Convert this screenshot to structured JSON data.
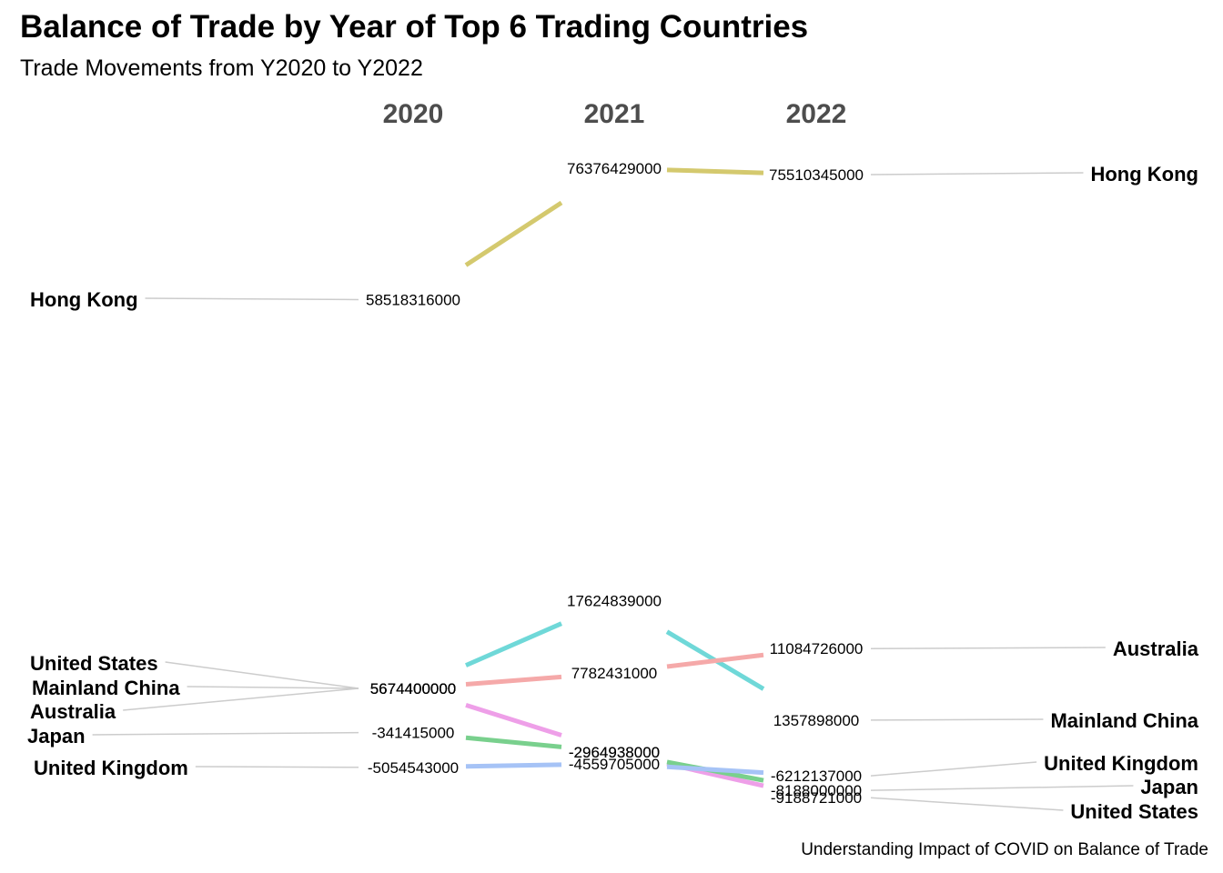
{
  "chart_data": {
    "type": "line",
    "title": "Balance of Trade by Year of Top 6 Trading Countries",
    "subtitle": "Trade Movements from Y2020 to Y2022",
    "caption": "Understanding Impact of COVID on Balance of Trade",
    "categories": [
      "2020",
      "2021",
      "2022"
    ],
    "series": [
      {
        "name": "Hong Kong",
        "values": [
          58518316000,
          76376429000,
          75510345000
        ],
        "color": "#d4c96e",
        "labels": [
          "58518316000",
          "76376429000",
          "75510345000"
        ]
      },
      {
        "name": "Mainland China",
        "values": [
          5674400000,
          17624839000,
          1357898000
        ],
        "color": "#6fd8d8",
        "labels": [
          "5674400000",
          "17624839000",
          "1357898000"
        ]
      },
      {
        "name": "Australia",
        "values": [
          5674400000,
          7782431000,
          11084726000
        ],
        "color": "#f5a9a9",
        "labels": [
          "5674400000",
          "7782431000",
          "11084726000"
        ]
      },
      {
        "name": "United States",
        "values": [
          5674400000,
          -2964938000,
          -9188721000
        ],
        "color": "#ee9fe8",
        "labels": [
          "5674400000",
          "-2964938000",
          "-9188721000"
        ]
      },
      {
        "name": "Japan",
        "values": [
          -341415000,
          -2964938000,
          -8188000000
        ],
        "color": "#79d08d",
        "labels": [
          "-341415000",
          "-2964938000",
          "-8188000000"
        ]
      },
      {
        "name": "United Kingdom",
        "values": [
          -5054543000,
          -4559705000,
          -6212137000
        ],
        "color": "#a6c3f6",
        "labels": [
          "-5054543000",
          "-4559705000",
          "-6212137000"
        ]
      }
    ],
    "left_label_order": [
      "Hong Kong",
      "United States",
      "Mainland China",
      "Australia",
      "Japan",
      "United Kingdom"
    ],
    "right_label_order": [
      "Hong Kong",
      "Australia",
      "Mainland China",
      "United Kingdom",
      "Japan",
      "United States"
    ],
    "grid": false,
    "legend": "none"
  }
}
